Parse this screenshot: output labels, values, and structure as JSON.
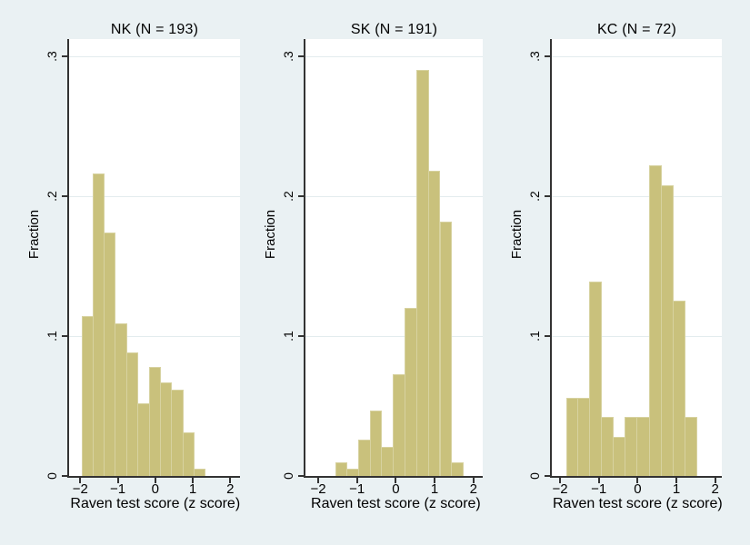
{
  "figure": {
    "background_color": "#eaf1f3",
    "plot_background_color": "#ffffff",
    "bar_fill_color": "#c9c17c",
    "bar_outline_color": "#d7d2a0",
    "gridline_color": "#e3ecee",
    "axis_color": "#333333",
    "text_color": "#000000"
  },
  "chart_data": [
    {
      "type": "bar",
      "title": "NK (N = 193)",
      "n": 193,
      "xlabel": "Raven test score (z score)",
      "ylabel": "Fraction",
      "x_tick_labels": [
        "−2",
        "−1",
        "0",
        "1",
        "2"
      ],
      "x_tick_values": [
        -2,
        -1,
        0,
        1,
        2
      ],
      "y_tick_labels": [
        "0",
        ".1",
        ".2",
        ".3"
      ],
      "y_tick_values": [
        0,
        0.1,
        0.2,
        0.3
      ],
      "ylim": [
        0,
        0.3
      ],
      "grid": "horizontal",
      "bin_start": -1.95,
      "bin_width": 0.3,
      "fractions": [
        0.114,
        0.216,
        0.174,
        0.109,
        0.088,
        0.052,
        0.078,
        0.067,
        0.062,
        0.031,
        0.005
      ]
    },
    {
      "type": "bar",
      "title": "SK (N = 191)",
      "n": 191,
      "xlabel": "Raven test score (z score)",
      "ylabel": "Fraction",
      "x_tick_labels": [
        "−2",
        "−1",
        "0",
        "1",
        "2"
      ],
      "x_tick_values": [
        -2,
        -1,
        0,
        1,
        2
      ],
      "y_tick_labels": [
        "0",
        ".1",
        ".2",
        ".3"
      ],
      "y_tick_values": [
        0,
        0.1,
        0.2,
        0.3
      ],
      "ylim": [
        0,
        0.3
      ],
      "grid": "horizontal",
      "bin_start": -1.55,
      "bin_width": 0.3,
      "fractions": [
        0.01,
        0.005,
        0.026,
        0.047,
        0.021,
        0.073,
        0.12,
        0.29,
        0.218,
        0.182,
        0.01
      ]
    },
    {
      "type": "bar",
      "title": "KC (N = 72)",
      "n": 72,
      "xlabel": "Raven test score (z score)",
      "ylabel": "Fraction",
      "x_tick_labels": [
        "−2",
        "−1",
        "0",
        "1",
        "2"
      ],
      "x_tick_values": [
        -2,
        -1,
        0,
        1,
        2
      ],
      "y_tick_labels": [
        "0",
        ".1",
        ".2",
        ".3"
      ],
      "y_tick_values": [
        0,
        0.1,
        0.2,
        0.3
      ],
      "ylim": [
        0,
        0.3
      ],
      "grid": "horizontal",
      "bin_start": -1.84,
      "bin_width": 0.307,
      "fractions": [
        0.056,
        0.056,
        0.139,
        0.042,
        0.028,
        0.042,
        0.042,
        0.222,
        0.208,
        0.125,
        0.042
      ]
    }
  ]
}
